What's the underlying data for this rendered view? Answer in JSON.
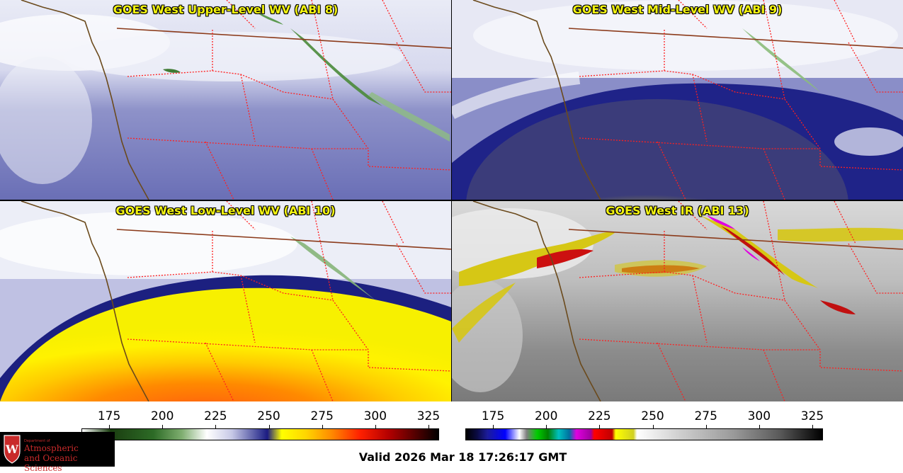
{
  "panels": {
    "upper_left_title": "GOES West Upper-Level WV (ABI 8)",
    "upper_right_title": "GOES West Mid-Level WV (ABI 9)",
    "lower_left_title": "GOES West Low-Level WV (ABI 10)",
    "lower_right_title": "GOES West IR (ABI 13)"
  },
  "colorbars": {
    "wv_ticks": [
      "175",
      "200",
      "225",
      "250",
      "275",
      "300",
      "325"
    ],
    "ir_ticks": [
      "175",
      "200",
      "225",
      "250",
      "275",
      "300",
      "325"
    ],
    "tick_values": [
      175,
      200,
      225,
      250,
      275,
      300,
      325
    ],
    "range": [
      162,
      330
    ]
  },
  "logo": {
    "department": "Department of",
    "line1": "Atmospheric",
    "line2": "and Oceanic Sciences"
  },
  "valid_time": "Valid 2026 Mar 18 17:26:17 GMT",
  "colors": {
    "title_text": "#f4f410",
    "state_borders": "#ff2020",
    "coastline": "#6b4a1c",
    "logo_red": "#c92a2a"
  }
}
